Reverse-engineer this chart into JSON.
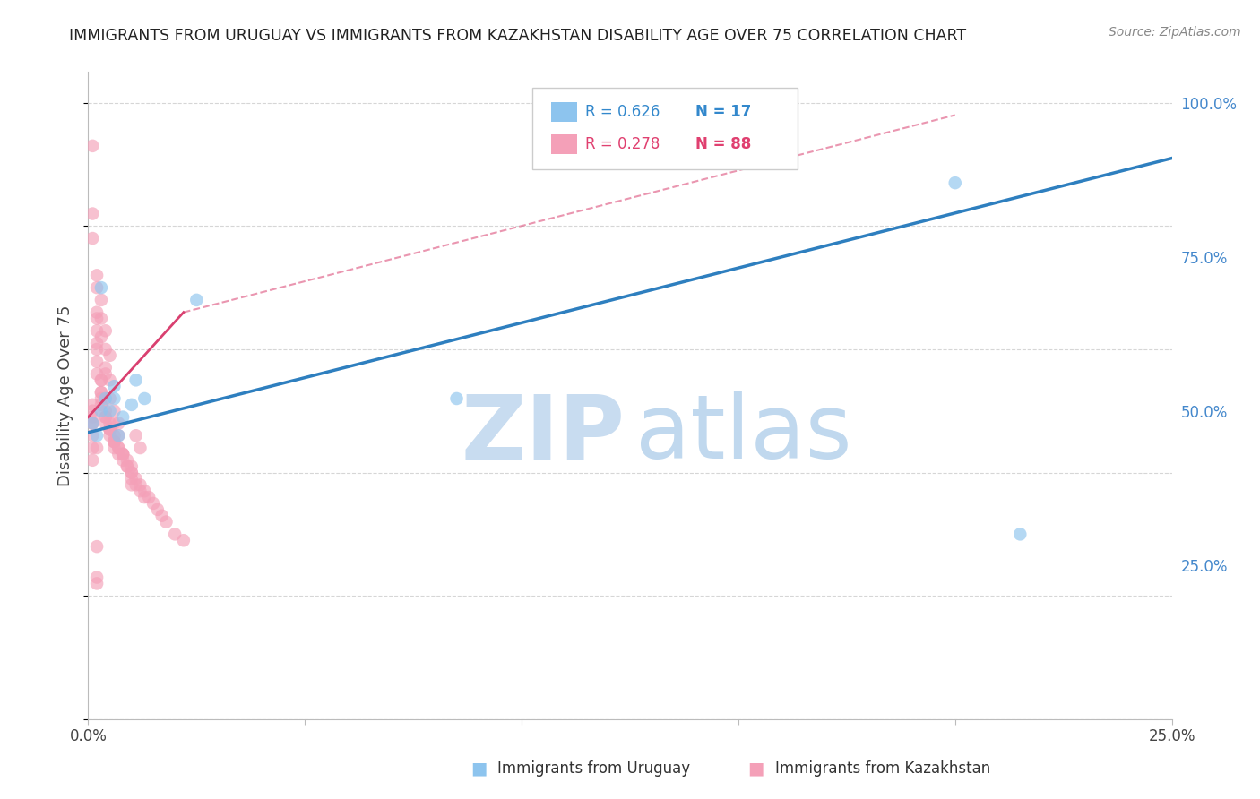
{
  "title": "IMMIGRANTS FROM URUGUAY VS IMMIGRANTS FROM KAZAKHSTAN DISABILITY AGE OVER 75 CORRELATION CHART",
  "source": "Source: ZipAtlas.com",
  "ylabel": "Disability Age Over 75",
  "xlim": [
    0.0,
    0.25
  ],
  "ylim": [
    0.0,
    1.05
  ],
  "yticks": [
    0.0,
    0.25,
    0.5,
    0.75,
    1.0
  ],
  "ytick_labels_right": [
    "",
    "25.0%",
    "50.0%",
    "75.0%",
    "100.0%"
  ],
  "xticks": [
    0.0,
    0.05,
    0.1,
    0.15,
    0.2,
    0.25
  ],
  "xtick_labels": [
    "0.0%",
    "",
    "",
    "",
    "",
    "25.0%"
  ],
  "legend_R1": "R = 0.626",
  "legend_N1": "N = 17",
  "legend_R2": "R = 0.278",
  "legend_N2": "N = 88",
  "legend_label1": "Immigrants from Uruguay",
  "legend_label2": "Immigrants from Kazakhstan",
  "color_uruguay": "#8DC4EE",
  "color_kazakhstan": "#F4A0B8",
  "color_line_uruguay": "#2E7FBF",
  "color_line_kazakhstan": "#D94070",
  "watermark_zip_color": "#C8DCF0",
  "watermark_atlas_color": "#C0D8EE",
  "background_color": "#FFFFFF",
  "grid_color": "#CCCCCC",
  "uruguay_x": [
    0.001,
    0.002,
    0.003,
    0.004,
    0.005,
    0.006,
    0.007,
    0.008,
    0.01,
    0.011,
    0.013,
    0.025,
    0.085,
    0.2,
    0.215,
    0.003,
    0.006
  ],
  "uruguay_y": [
    0.48,
    0.46,
    0.7,
    0.52,
    0.5,
    0.52,
    0.46,
    0.49,
    0.51,
    0.55,
    0.52,
    0.68,
    0.52,
    0.87,
    0.3,
    0.5,
    0.54
  ],
  "kazakhstan_x": [
    0.001,
    0.001,
    0.001,
    0.002,
    0.002,
    0.002,
    0.002,
    0.002,
    0.002,
    0.003,
    0.003,
    0.003,
    0.003,
    0.003,
    0.003,
    0.004,
    0.004,
    0.004,
    0.004,
    0.004,
    0.005,
    0.005,
    0.005,
    0.005,
    0.005,
    0.005,
    0.006,
    0.006,
    0.006,
    0.006,
    0.006,
    0.007,
    0.007,
    0.007,
    0.008,
    0.008,
    0.008,
    0.009,
    0.009,
    0.01,
    0.01,
    0.01,
    0.01,
    0.011,
    0.011,
    0.012,
    0.012,
    0.013,
    0.013,
    0.014,
    0.015,
    0.016,
    0.017,
    0.018,
    0.02,
    0.022,
    0.001,
    0.001,
    0.002,
    0.002,
    0.003,
    0.004,
    0.005,
    0.006,
    0.007,
    0.008,
    0.009,
    0.01,
    0.011,
    0.012,
    0.003,
    0.004,
    0.005,
    0.006,
    0.007,
    0.002,
    0.003,
    0.004,
    0.001,
    0.002,
    0.001,
    0.001,
    0.002,
    0.001,
    0.001,
    0.001,
    0.002,
    0.002
  ],
  "kazakhstan_y": [
    0.93,
    0.82,
    0.78,
    0.66,
    0.63,
    0.6,
    0.58,
    0.56,
    0.72,
    0.55,
    0.53,
    0.53,
    0.52,
    0.51,
    0.68,
    0.5,
    0.49,
    0.49,
    0.48,
    0.63,
    0.48,
    0.47,
    0.47,
    0.47,
    0.46,
    0.59,
    0.46,
    0.45,
    0.45,
    0.45,
    0.44,
    0.44,
    0.44,
    0.43,
    0.43,
    0.43,
    0.42,
    0.42,
    0.41,
    0.41,
    0.4,
    0.4,
    0.39,
    0.39,
    0.38,
    0.38,
    0.37,
    0.37,
    0.36,
    0.36,
    0.35,
    0.34,
    0.33,
    0.32,
    0.3,
    0.29,
    0.5,
    0.48,
    0.65,
    0.61,
    0.55,
    0.56,
    0.52,
    0.48,
    0.46,
    0.43,
    0.41,
    0.38,
    0.46,
    0.44,
    0.62,
    0.57,
    0.55,
    0.5,
    0.48,
    0.7,
    0.65,
    0.6,
    0.48,
    0.44,
    0.51,
    0.49,
    0.23,
    0.46,
    0.44,
    0.42,
    0.28,
    0.22
  ],
  "uru_line_x0": 0.0,
  "uru_line_y0": 0.465,
  "uru_line_x1": 0.25,
  "uru_line_y1": 0.91,
  "kaz_line_solid_x0": 0.0,
  "kaz_line_solid_y0": 0.49,
  "kaz_line_solid_x1": 0.022,
  "kaz_line_solid_y1": 0.66,
  "kaz_line_dash_x0": 0.022,
  "kaz_line_dash_y0": 0.66,
  "kaz_line_dash_x1": 0.2,
  "kaz_line_dash_y1": 0.98
}
